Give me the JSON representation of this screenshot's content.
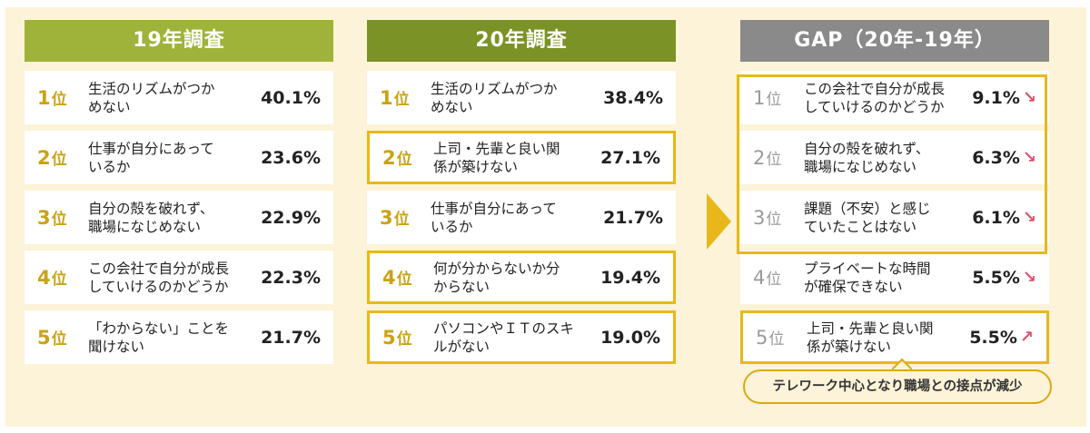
{
  "colors": {
    "header_19": "#9fb33a",
    "header_20": "#7b9226",
    "header_gap": "#8a8a8a",
    "rank_gold": "#c9a314",
    "highlight": "#e8b81a",
    "arrow_red": "#e0506a",
    "background": "#fcf3d8"
  },
  "chart_data": {
    "type": "table",
    "columns": [
      {
        "id": "c19",
        "title": "19年調査",
        "rows": [
          {
            "rank": "1",
            "rank_suffix": "位",
            "label": "生活のリズムがつか\nめない",
            "value": "40.1%",
            "highlighted": false
          },
          {
            "rank": "2",
            "rank_suffix": "位",
            "label": "仕事が自分にあって\nいるか",
            "value": "23.6%",
            "highlighted": false
          },
          {
            "rank": "3",
            "rank_suffix": "位",
            "label": "自分の殻を破れず、\n職場になじめない",
            "value": "22.9%",
            "highlighted": false
          },
          {
            "rank": "4",
            "rank_suffix": "位",
            "label": "この会社で自分が成長\nしていけるのかどうか",
            "value": "22.3%",
            "highlighted": false
          },
          {
            "rank": "5",
            "rank_suffix": "位",
            "label": "「わからない」ことを\n聞けない",
            "value": "21.7%",
            "highlighted": false
          }
        ]
      },
      {
        "id": "c20",
        "title": "20年調査",
        "rows": [
          {
            "rank": "1",
            "rank_suffix": "位",
            "label": "生活のリズムがつか\nめない",
            "value": "38.4%",
            "highlighted": false
          },
          {
            "rank": "2",
            "rank_suffix": "位",
            "label": "上司・先輩と良い関\n係が築けない",
            "value": "27.1%",
            "highlighted": true
          },
          {
            "rank": "3",
            "rank_suffix": "位",
            "label": "仕事が自分にあって\nいるか",
            "value": "21.7%",
            "highlighted": false
          },
          {
            "rank": "4",
            "rank_suffix": "位",
            "label": "何が分からないか分\nからない",
            "value": "19.4%",
            "highlighted": true
          },
          {
            "rank": "5",
            "rank_suffix": "位",
            "label": "パソコンやＩＴのスキ\nルがない",
            "value": "19.0%",
            "highlighted": true
          }
        ]
      },
      {
        "id": "cgap",
        "title": "GAP（20年-19年）",
        "rows": [
          {
            "rank": "1",
            "rank_suffix": "位",
            "label": "この会社で自分が成長\nしていけるのかどうか",
            "value": "9.1%",
            "trend": "down",
            "trend_icon": "↘",
            "highlighted": true
          },
          {
            "rank": "2",
            "rank_suffix": "位",
            "label": "自分の殻を破れず、\n職場になじめない",
            "value": "6.3%",
            "trend": "down",
            "trend_icon": "↘",
            "highlighted": true
          },
          {
            "rank": "3",
            "rank_suffix": "位",
            "label": "課題（不安）と感じ\nていたことはない",
            "value": "6.1%",
            "trend": "down",
            "trend_icon": "↘",
            "highlighted": true
          },
          {
            "rank": "4",
            "rank_suffix": "位",
            "label": "プライベートな時間\nが確保できない",
            "value": "5.5%",
            "trend": "down",
            "trend_icon": "↘",
            "highlighted": false
          },
          {
            "rank": "5",
            "rank_suffix": "位",
            "label": "上司・先輩と良い関\n係が築けない",
            "value": "5.5%",
            "trend": "up",
            "trend_icon": "↗",
            "highlighted": true
          }
        ]
      }
    ],
    "callout": "テレワーク中心となり職場との接点が減少"
  }
}
